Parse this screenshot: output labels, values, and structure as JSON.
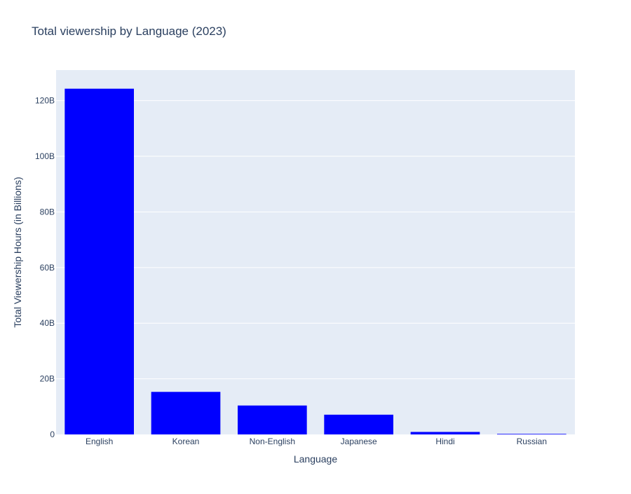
{
  "chart_data": {
    "type": "bar",
    "title": "Total viewership by Language (2023)",
    "xlabel": "Language",
    "ylabel": "Total Viewership Hours (in Billions)",
    "categories": [
      "English",
      "Korean",
      "Non-English",
      "Japanese",
      "Hindi",
      "Russian"
    ],
    "values": [
      124.3,
      15.3,
      10.4,
      7.1,
      0.9,
      0.2
    ],
    "value_unit_suffix": "B",
    "ylim": [
      0,
      131
    ],
    "yticks": [
      0,
      20,
      40,
      60,
      80,
      100,
      120
    ],
    "ytick_labels": [
      "0",
      "20B",
      "40B",
      "60B",
      "80B",
      "100B",
      "120B"
    ],
    "grid": true,
    "bar_color": "#0000ff",
    "plot_background": "#e5ecf6",
    "gridline_color": "#ffffff",
    "text_color": "#2a3f5f"
  }
}
